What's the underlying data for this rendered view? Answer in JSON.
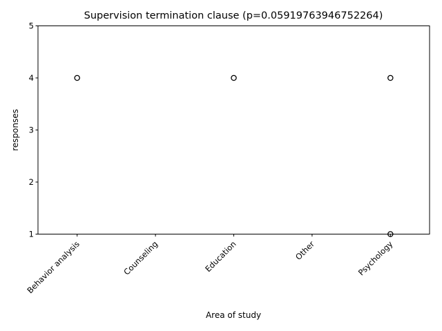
{
  "chart_data": {
    "type": "box",
    "title": "Supervision termination clause (p=0.05919763946752264)",
    "xlabel": "Area of study",
    "ylabel": "responses",
    "ylim": [
      1,
      5
    ],
    "yticks": [
      1,
      2,
      3,
      4,
      5
    ],
    "categories": [
      "Behavior analysis",
      "Counseling",
      "Education",
      "Other",
      "Psychology"
    ],
    "boxes": [
      {
        "category": "Behavior analysis",
        "q1": 5,
        "median": 5,
        "q3": 5,
        "whisker_low": 5,
        "whisker_high": 5,
        "fliers": [
          4
        ]
      },
      {
        "category": "Counseling",
        "q1": 5,
        "median": 5,
        "q3": 5,
        "whisker_low": 5,
        "whisker_high": 5,
        "fliers": []
      },
      {
        "category": "Education",
        "q1": 5,
        "median": 5,
        "q3": 5,
        "whisker_low": 5,
        "whisker_high": 5,
        "fliers": [
          4
        ]
      },
      {
        "category": "Other",
        "q1": 5,
        "median": 5,
        "q3": 5,
        "whisker_low": 5,
        "whisker_high": 5,
        "fliers": []
      },
      {
        "category": "Psychology",
        "q1": 5,
        "median": 5,
        "q3": 5,
        "whisker_low": 5,
        "whisker_high": 5,
        "fliers": [
          4,
          1
        ]
      }
    ],
    "grid": false,
    "x_tick_rotation": 45
  }
}
